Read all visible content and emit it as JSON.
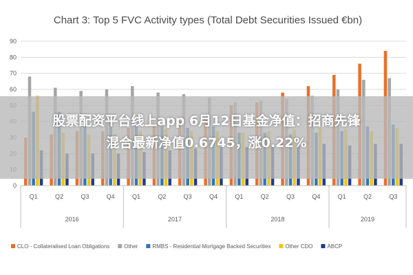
{
  "chart_data": {
    "type": "bar",
    "title": "Chart 3: Top 5 FVC Activity types (Total Debt Securities Issued €bn)",
    "yticks": [
      "0",
      "10",
      "20",
      "30",
      "40",
      "50",
      "60",
      "70",
      "80",
      "90"
    ],
    "ylim": [
      0,
      90
    ],
    "grid": true,
    "legend_position": "bottom",
    "categories": [
      "Q1",
      "Q2",
      "Q3",
      "Q4",
      "Q1",
      "Q2",
      "Q3",
      "Q4",
      "Q1",
      "Q2",
      "Q3",
      "Q4",
      "Q1",
      "Q2",
      "Q3"
    ],
    "groups": [
      {
        "label": "2016",
        "count": 4
      },
      {
        "label": "2017",
        "count": 4
      },
      {
        "label": "2018",
        "count": 4
      },
      {
        "label": "2019",
        "count": 3
      }
    ],
    "series": [
      {
        "name": "CLO - Collateralised Loan Obligations",
        "color": "#e8702a",
        "values": [
          30,
          32,
          34,
          34,
          36,
          38,
          40,
          42,
          50,
          52,
          58,
          62,
          69,
          76,
          84
        ]
      },
      {
        "name": "Other",
        "color": "#a5a5a5",
        "values": [
          68,
          61,
          59,
          60,
          62,
          58,
          57,
          55,
          52,
          53,
          54,
          56,
          60,
          66,
          67
        ]
      },
      {
        "name": "RMBS - Residential Mortgage Backed Securities",
        "color": "#2e75b6",
        "values": [
          46,
          46,
          42,
          40,
          38,
          37,
          36,
          37,
          33,
          33,
          32,
          33,
          34,
          37,
          38
        ]
      },
      {
        "name": "Other CDO",
        "color": "#f2c413",
        "values": [
          56,
          33,
          32,
          32,
          34,
          35,
          34,
          34,
          33,
          34,
          35,
          36,
          35,
          34,
          36
        ]
      },
      {
        "name": "ABCP",
        "color": "#1f3c88",
        "values": [
          22,
          20,
          20,
          20,
          21,
          22,
          23,
          24,
          24,
          25,
          25,
          26,
          25,
          26,
          26
        ]
      }
    ]
  },
  "banner": {
    "line1": "股票配资平台线上app 6月12日基金净值：招商先锋",
    "line2": "混合最新净值0.6745，涨0.22%"
  }
}
